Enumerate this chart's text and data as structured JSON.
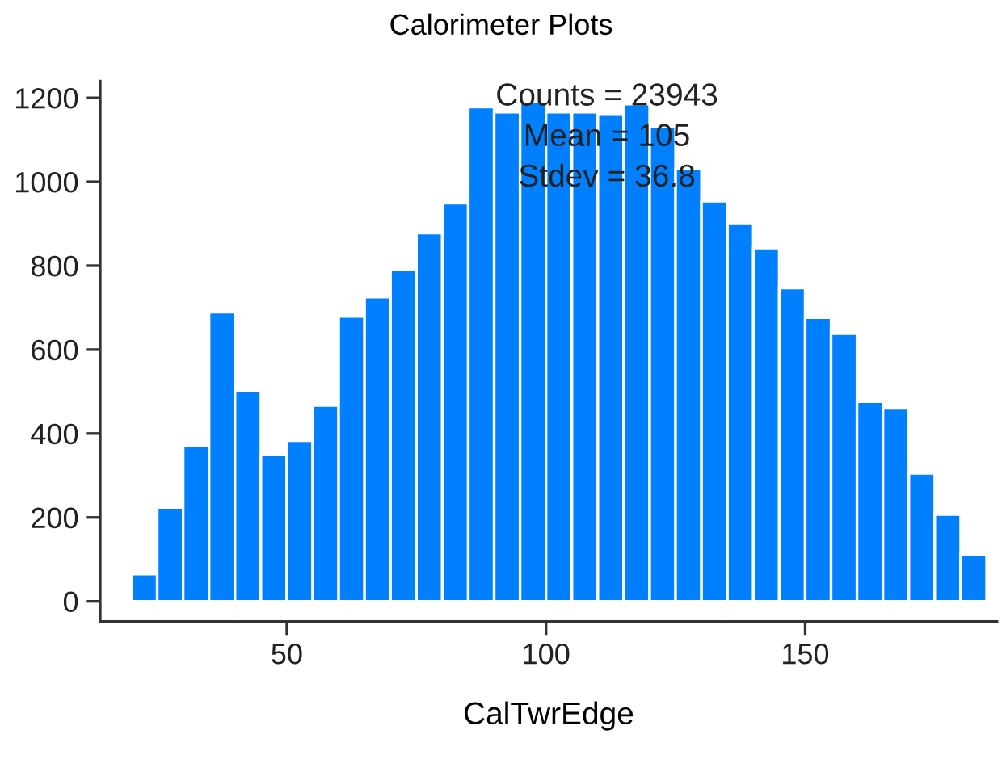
{
  "chart_data": {
    "type": "histogram",
    "title": "Calorimeter Plots",
    "xlabel": "CalTwrEdge",
    "bins": [
      20,
      25,
      30,
      35,
      40,
      45,
      50,
      55,
      60,
      65,
      70,
      75,
      80,
      85,
      90,
      95,
      100,
      105,
      110,
      115,
      120,
      125,
      130,
      135,
      140,
      145,
      150,
      155,
      160,
      165,
      170,
      175,
      180,
      185
    ],
    "values": [
      65,
      224,
      371,
      689,
      502,
      349,
      383,
      467,
      679,
      725,
      790,
      878,
      949,
      1178,
      1166,
      1190,
      1166,
      1166,
      1160,
      1185,
      1132,
      1032,
      954,
      900,
      842,
      747,
      676,
      638,
      476,
      460,
      305,
      207,
      111
    ],
    "color": "#0080ff",
    "xlim": [
      14,
      187
    ],
    "ylim": [
      -48,
      1240
    ],
    "xticks": [
      50,
      100,
      150
    ],
    "yticks": [
      0,
      200,
      400,
      600,
      800,
      1000,
      1200
    ],
    "annotations": [
      "Counts = 23943",
      "Mean = 105",
      "Stdev = 36.8"
    ],
    "grid": false,
    "legend": false
  }
}
